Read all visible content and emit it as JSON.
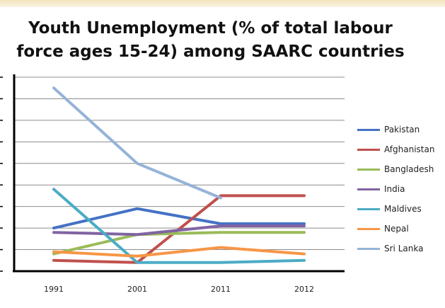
{
  "chart_data": {
    "type": "line",
    "title_line1": "Youth Unemployment (% of total labour",
    "title_line2": "force ages 15-24) among SAARC countries",
    "categories": [
      "1991",
      "2001",
      "2011",
      "2012"
    ],
    "ylim": [
      0,
      9
    ],
    "grid": true,
    "legend_position": "right",
    "series": [
      {
        "name": "Pakistan",
        "color": "#4472c4",
        "values": [
          2.0,
          2.9,
          2.2,
          2.2
        ]
      },
      {
        "name": "Afghanistan",
        "color": "#c0504d",
        "values": [
          0.5,
          0.4,
          3.5,
          3.5
        ]
      },
      {
        "name": "Bangladesh",
        "color": "#9bbb59",
        "values": [
          0.8,
          1.7,
          1.8,
          1.8
        ]
      },
      {
        "name": "India",
        "color": "#8064a2",
        "values": [
          1.8,
          1.7,
          2.1,
          2.1
        ]
      },
      {
        "name": "Maldives",
        "color": "#4bacc6",
        "values": [
          3.8,
          0.4,
          0.4,
          0.5
        ]
      },
      {
        "name": "Nepal",
        "color": "#f79646",
        "values": [
          0.9,
          0.7,
          1.1,
          0.8
        ]
      },
      {
        "name": "Sri Lanka",
        "color": "#95b3d7",
        "values": [
          8.5,
          5.0,
          3.4,
          null
        ]
      }
    ]
  }
}
